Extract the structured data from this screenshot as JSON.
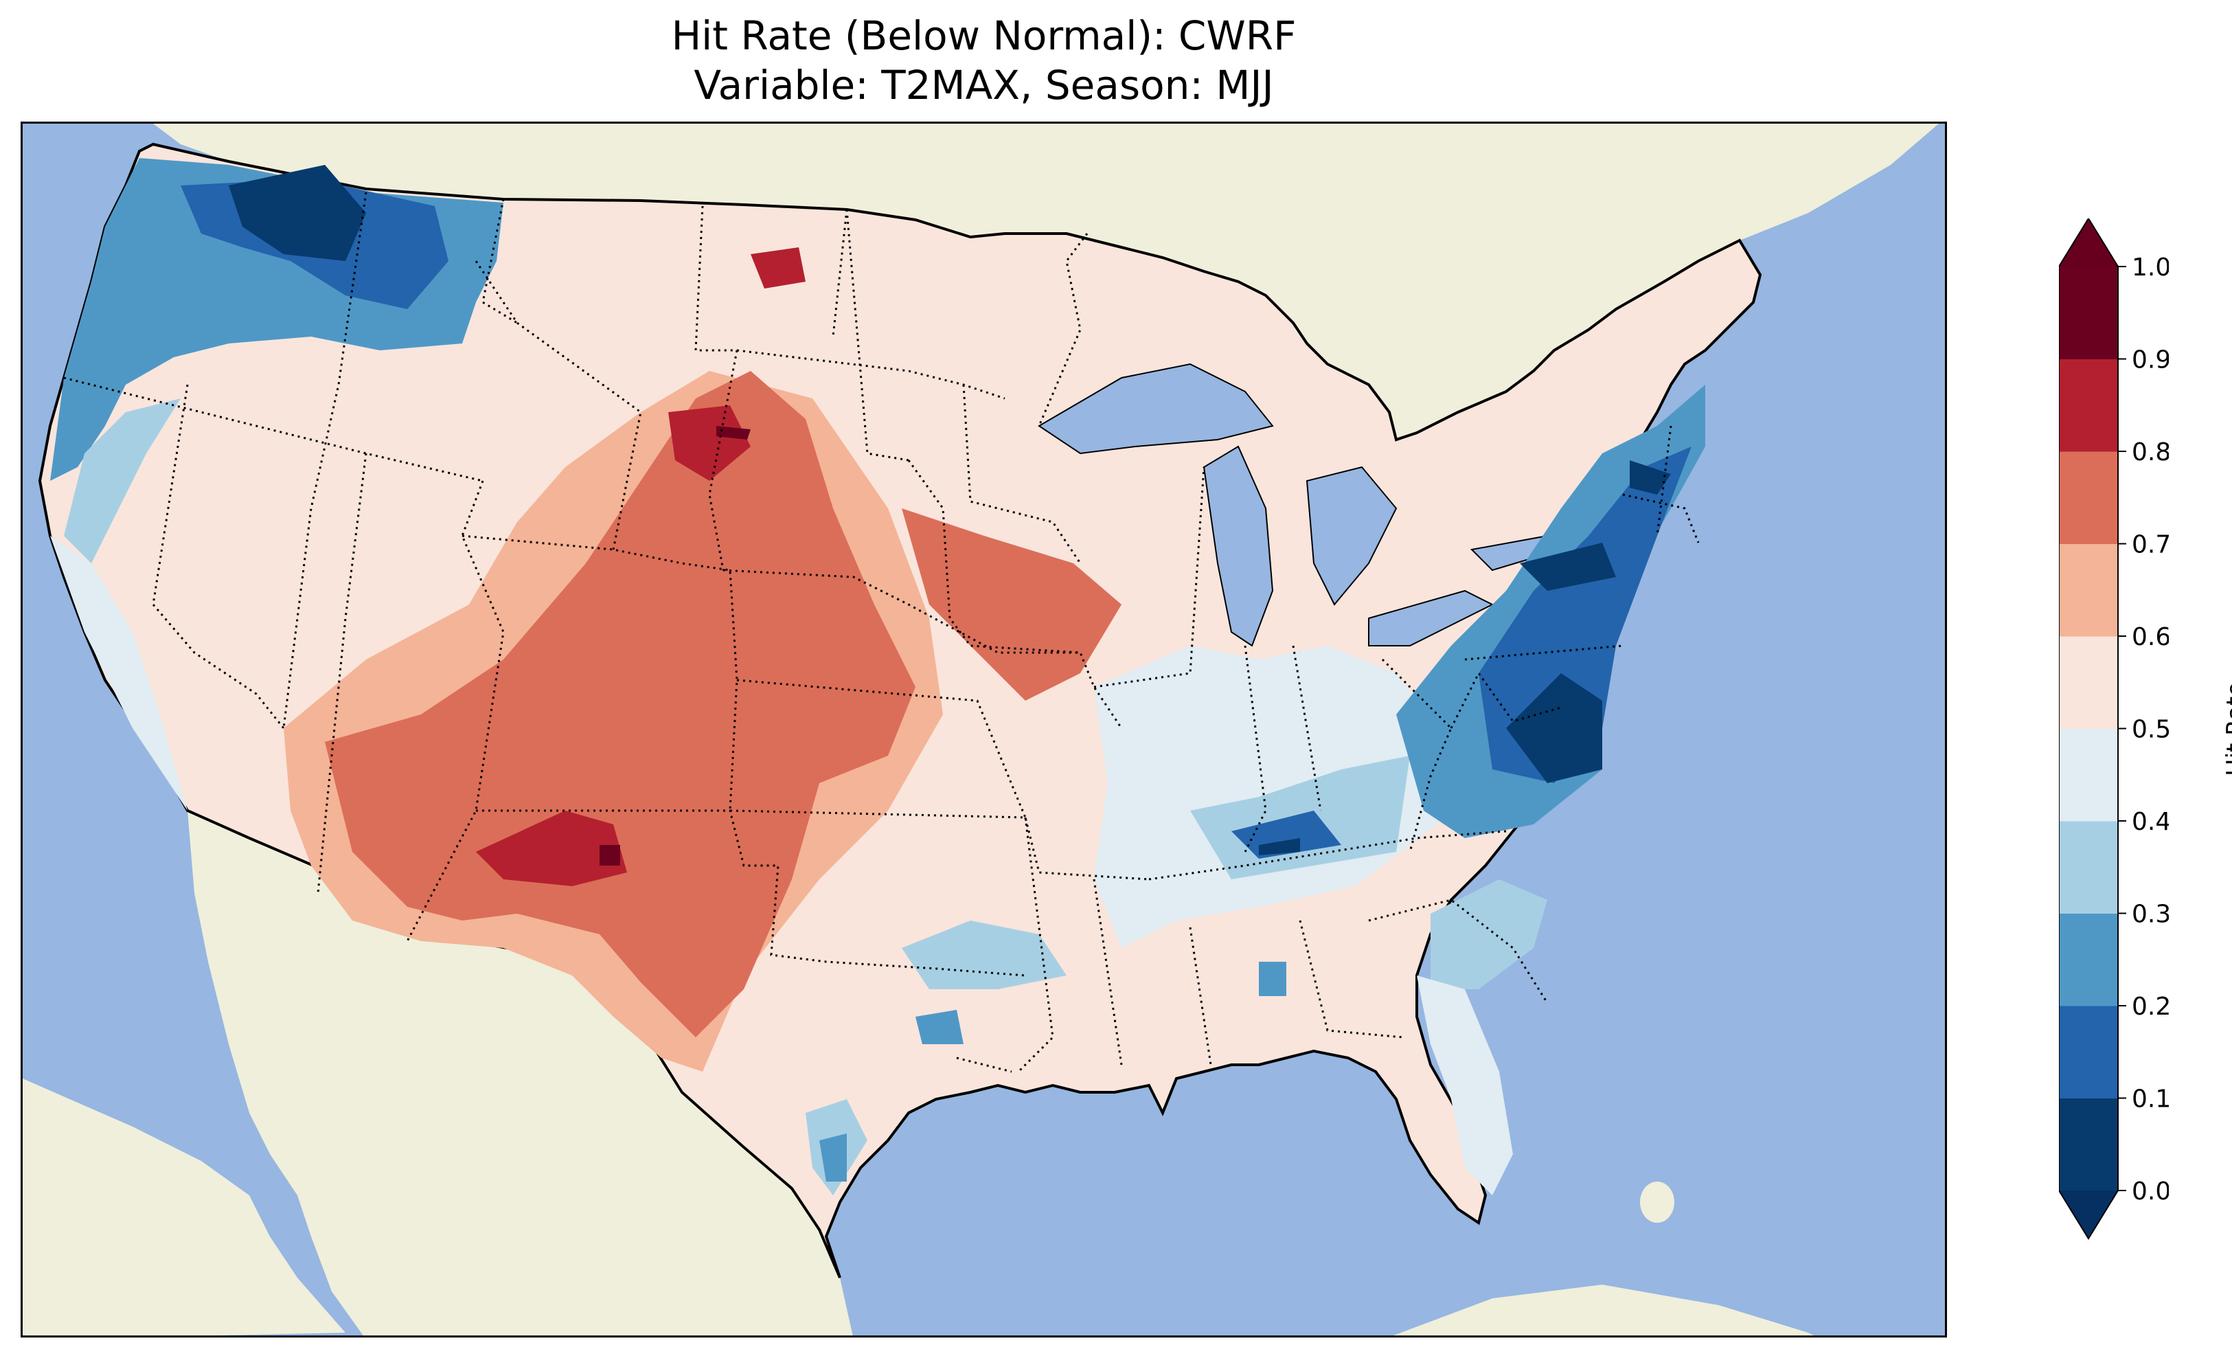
{
  "title": {
    "line1": "Hit Rate (Below Normal): CWRF",
    "line2": "Variable: T2MAX, Season: MJJ"
  },
  "map": {
    "region": "Contiguous United States",
    "colors": {
      "ocean": "#97b6e1",
      "land": "#efefdb",
      "coastline": "#000000",
      "state_border": "#000000"
    }
  },
  "colorbar": {
    "label": "Hit Rate",
    "ticks": [
      "0.0",
      "0.1",
      "0.2",
      "0.3",
      "0.4",
      "0.5",
      "0.6",
      "0.7",
      "0.8",
      "0.9",
      "1.0"
    ],
    "extend": "both",
    "bins": [
      {
        "range": "0.0-0.1",
        "color": "#073a6d"
      },
      {
        "range": "0.1-0.2",
        "color": "#2364ac"
      },
      {
        "range": "0.2-0.3",
        "color": "#4f98c6"
      },
      {
        "range": "0.3-0.4",
        "color": "#a7cfe4"
      },
      {
        "range": "0.4-0.5",
        "color": "#e1ecf3"
      },
      {
        "range": "0.5-0.6",
        "color": "#f9e5dc"
      },
      {
        "range": "0.6-0.7",
        "color": "#f4b497"
      },
      {
        "range": "0.7-0.8",
        "color": "#db6e59"
      },
      {
        "range": "0.8-0.9",
        "color": "#b4202f"
      },
      {
        "range": "0.9-1.0",
        "color": "#6a011f"
      }
    ],
    "under_color": "#053061",
    "over_color": "#67001f"
  }
}
